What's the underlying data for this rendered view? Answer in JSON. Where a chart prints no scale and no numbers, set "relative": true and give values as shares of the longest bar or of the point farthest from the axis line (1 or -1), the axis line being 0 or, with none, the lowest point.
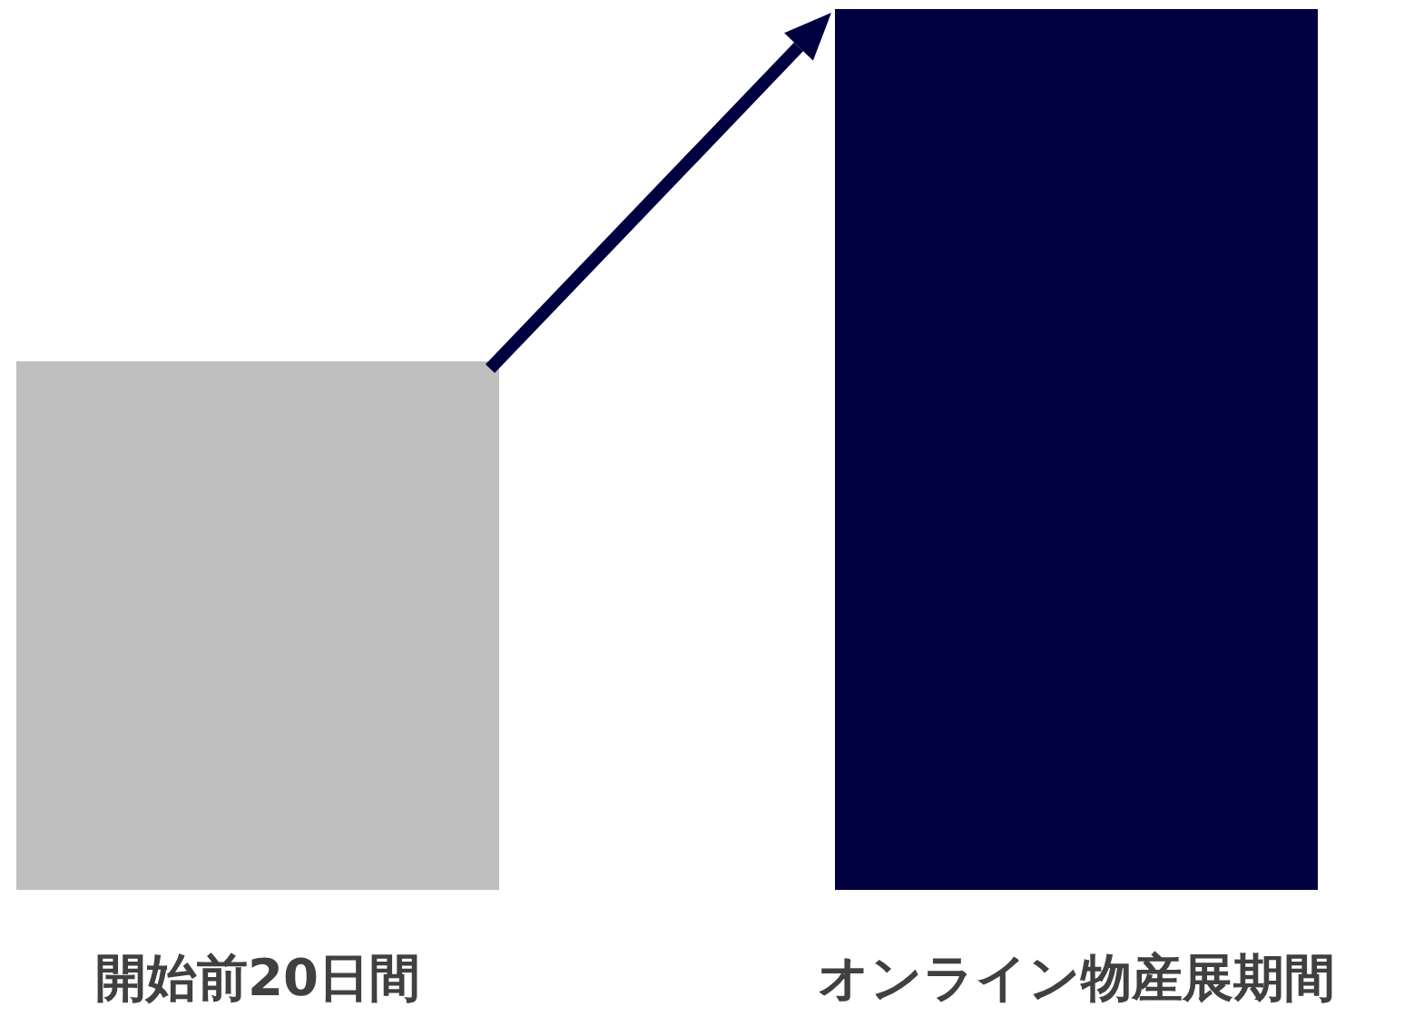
{
  "chart_data": {
    "type": "bar",
    "relative": true,
    "categories": [
      "開始前20日間",
      "オンライン物産展期間"
    ],
    "values": [
      0.6,
      1
    ],
    "colors": [
      "#bfbfbf",
      "#000040"
    ]
  }
}
